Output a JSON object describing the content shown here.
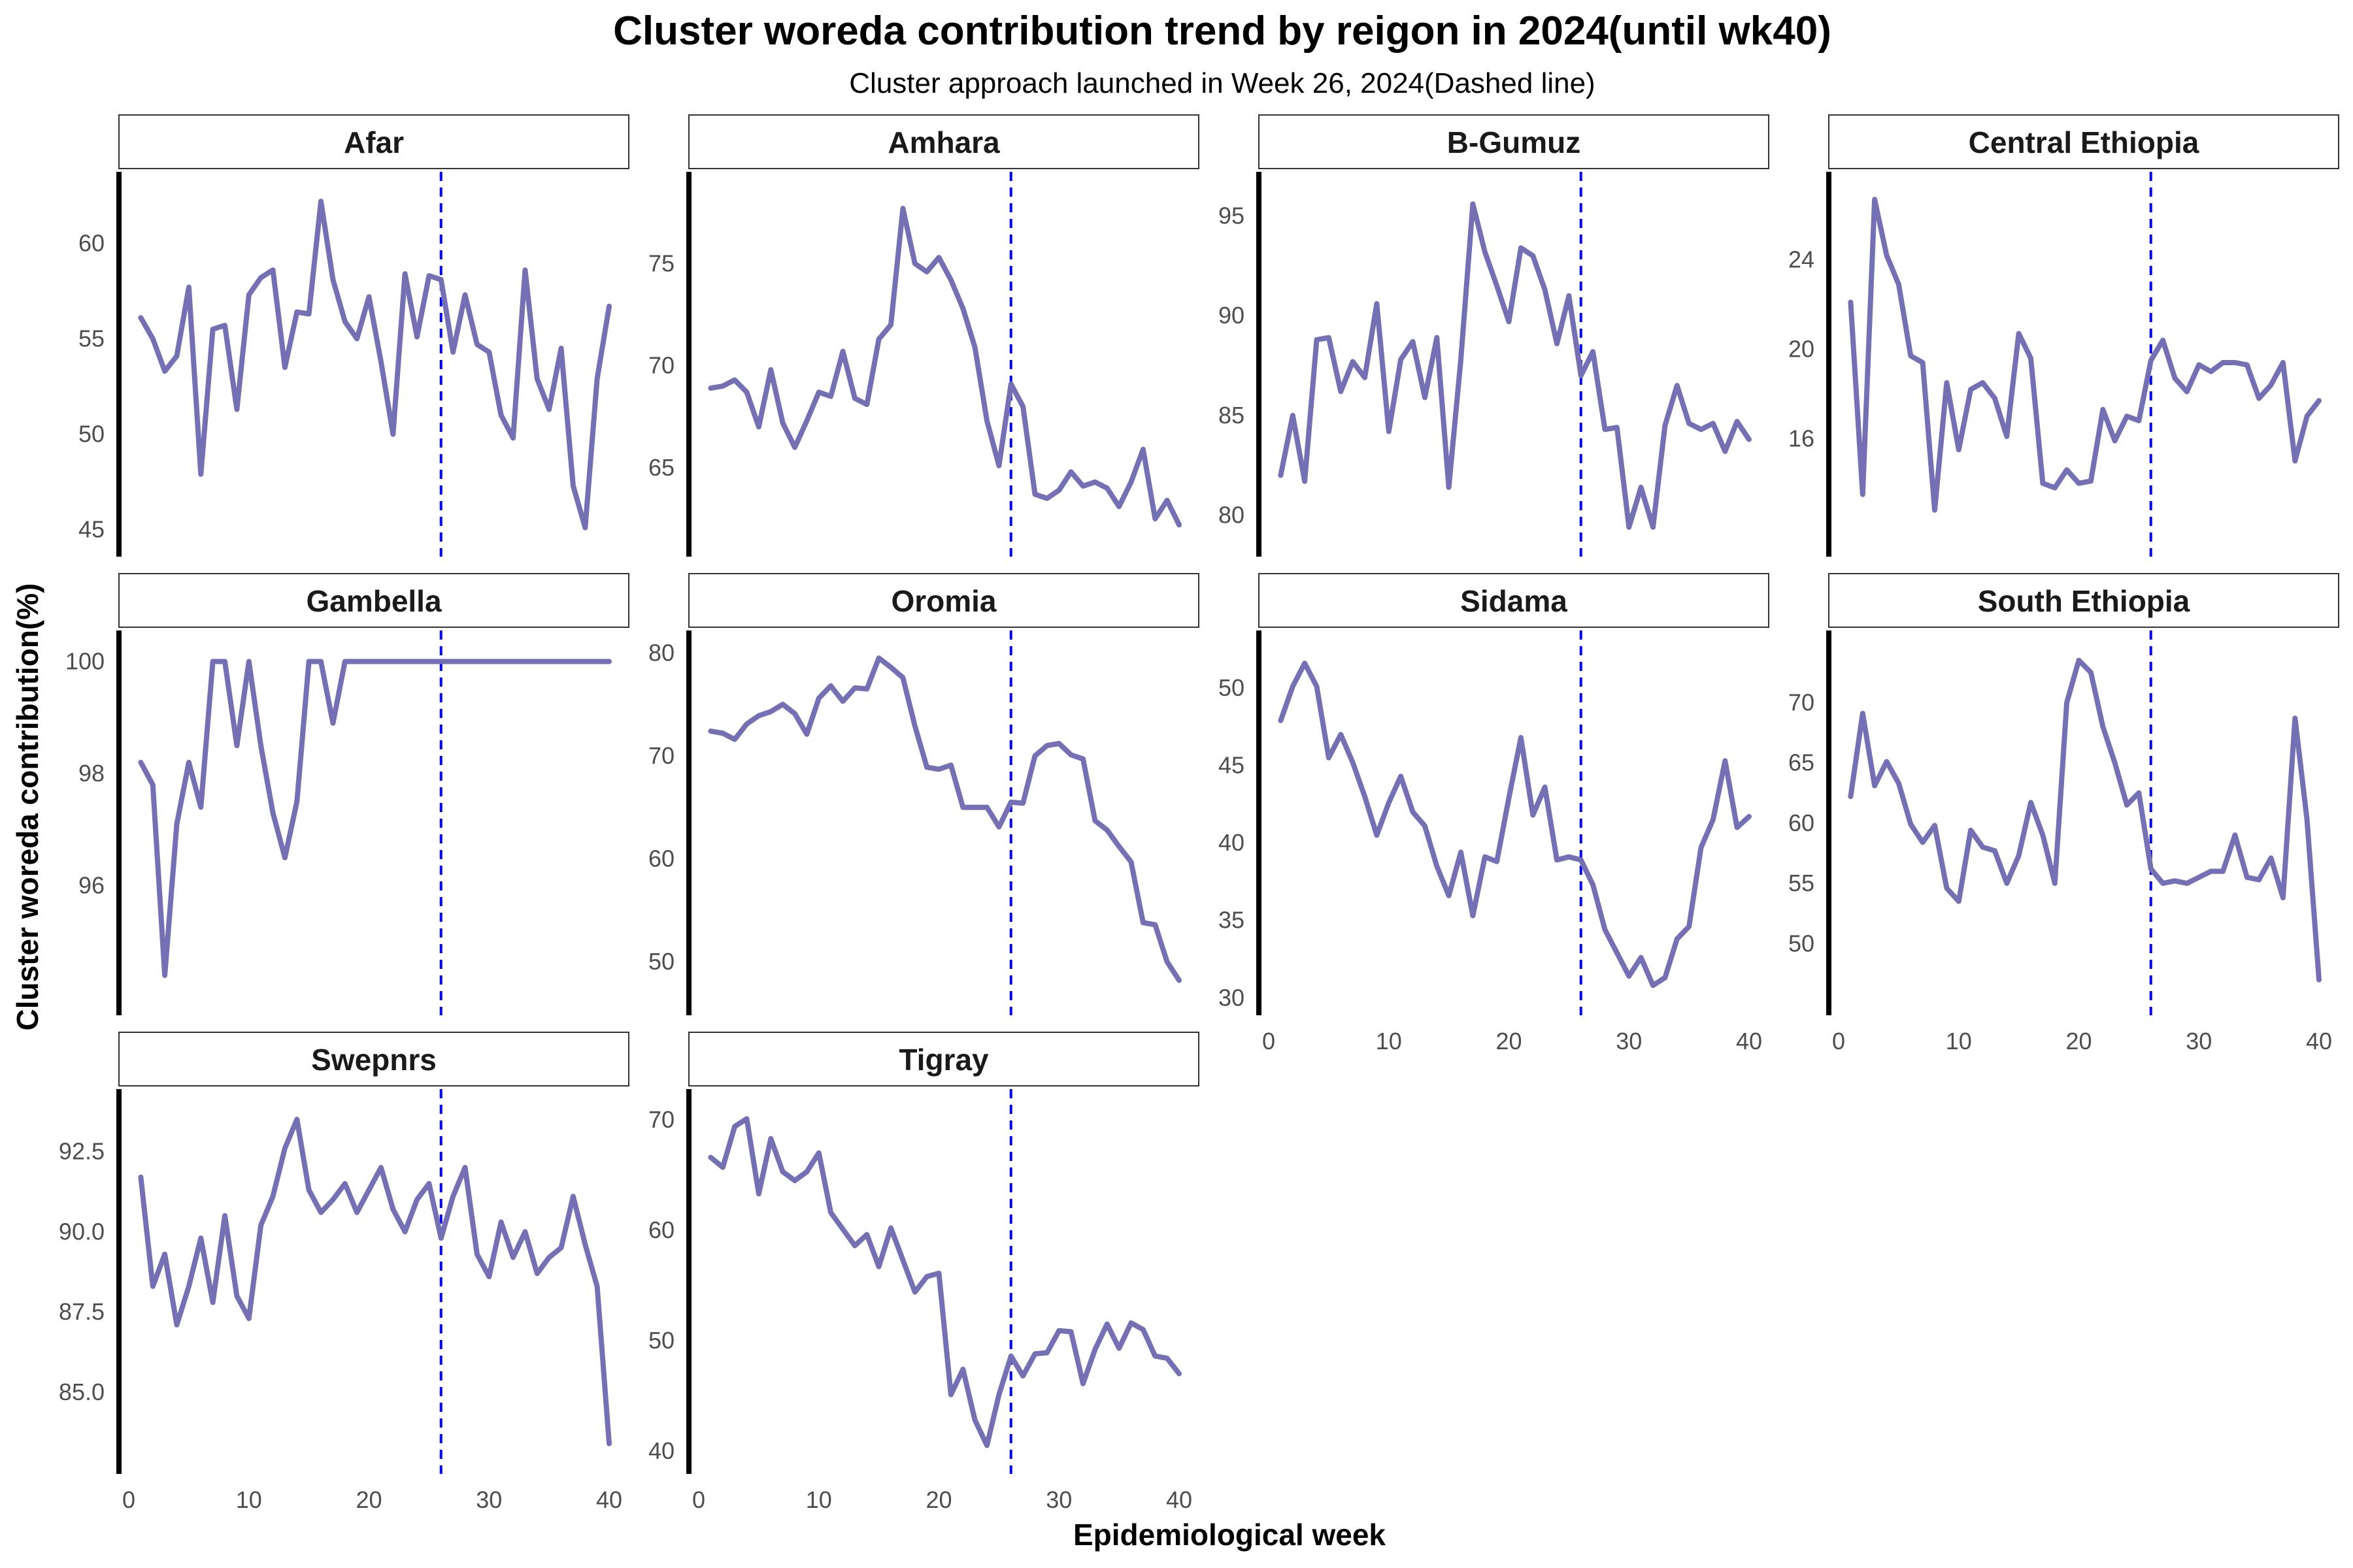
{
  "title": "Cluster woreda contribution trend by reigon in 2024(until wk40)",
  "subtitle": "Cluster approach launched in Week 26, 2024(Dashed line)",
  "chart_data": {
    "type": "line",
    "xlabel": "Epidemiological week",
    "ylabel": "Cluster woreda contribution(%)",
    "xlim": [
      0,
      40
    ],
    "x_ticks": [
      0,
      10,
      20,
      30,
      40
    ],
    "x": [
      1,
      2,
      3,
      4,
      5,
      6,
      7,
      8,
      9,
      10,
      11,
      12,
      13,
      14,
      15,
      16,
      17,
      18,
      19,
      20,
      21,
      22,
      23,
      24,
      25,
      26,
      27,
      28,
      29,
      30,
      31,
      32,
      33,
      34,
      35,
      36,
      37,
      38,
      39,
      40
    ],
    "reference_line": {
      "x": 26,
      "style": "dashed",
      "color": "#0000ff"
    },
    "line_color": "#7570b3",
    "grid": false,
    "facets": [
      {
        "name": "Afar",
        "ylim": [
          44.5,
          63
        ],
        "y_ticks": [
          45,
          50,
          55,
          60
        ],
        "y_tick_labels": [
          "45",
          "50",
          "55",
          "60"
        ],
        "values": [
          56.1,
          55.0,
          53.3,
          54.1,
          57.7,
          47.9,
          55.5,
          55.7,
          51.3,
          57.3,
          58.2,
          58.6,
          53.5,
          56.4,
          56.3,
          62.2,
          58.1,
          55.9,
          55.0,
          57.2,
          53.8,
          50.0,
          58.4,
          55.1,
          58.3,
          58.1,
          54.3,
          57.3,
          54.7,
          54.3,
          51.0,
          49.8,
          58.6,
          52.9,
          51.3,
          54.5,
          47.3,
          45.1,
          52.9,
          56.7
        ]
      },
      {
        "name": "Amhara",
        "ylim": [
          61.5,
          78.8
        ],
        "y_ticks": [
          65,
          70,
          75
        ],
        "y_tick_labels": [
          "65",
          "70",
          "75"
        ],
        "values": [
          68.9,
          69.0,
          69.3,
          68.7,
          67.0,
          69.8,
          67.2,
          66.0,
          67.3,
          68.7,
          68.5,
          70.7,
          68.4,
          68.1,
          71.3,
          72.0,
          77.7,
          75.0,
          74.6,
          75.3,
          74.2,
          72.8,
          70.9,
          67.3,
          65.1,
          69.1,
          68.0,
          63.7,
          63.5,
          63.9,
          64.8,
          64.1,
          64.3,
          64.0,
          63.1,
          64.3,
          65.9,
          62.5,
          63.4,
          62.2
        ]
      },
      {
        "name": "B-Gumuz",
        "ylim": [
          78.8,
          96.5
        ],
        "y_ticks": [
          80,
          85,
          90,
          95
        ],
        "y_tick_labels": [
          "80",
          "85",
          "90",
          "95"
        ],
        "values": [
          82.0,
          85.0,
          81.7,
          88.8,
          88.9,
          86.2,
          87.7,
          86.9,
          90.6,
          84.2,
          87.8,
          88.7,
          85.9,
          88.9,
          81.4,
          87.8,
          95.6,
          93.2,
          91.5,
          89.7,
          93.4,
          93.0,
          91.3,
          88.6,
          91.0,
          87.0,
          88.2,
          84.3,
          84.4,
          79.4,
          81.4,
          79.4,
          84.5,
          86.5,
          84.6,
          84.3,
          84.6,
          83.2,
          84.7,
          83.8
        ]
      },
      {
        "name": "Central Ethiopia",
        "ylim": [
          11.5,
          27.3
        ],
        "y_ticks": [
          16,
          20,
          24
        ],
        "y_tick_labels": [
          "16",
          "20",
          "24"
        ],
        "values": [
          22.1,
          13.5,
          26.7,
          24.2,
          22.9,
          19.7,
          19.4,
          12.8,
          18.5,
          15.5,
          18.2,
          18.5,
          17.8,
          16.1,
          20.7,
          19.6,
          14.0,
          13.8,
          14.6,
          14.0,
          14.1,
          17.3,
          15.9,
          17.0,
          16.8,
          19.5,
          20.4,
          18.7,
          18.1,
          19.3,
          19.0,
          19.4,
          19.4,
          19.3,
          17.8,
          18.4,
          19.4,
          15.0,
          17.0,
          17.7
        ]
      },
      {
        "name": "Gambella",
        "ylim": [
          94.0,
          100.3
        ],
        "y_ticks": [
          96,
          98,
          100
        ],
        "y_tick_labels": [
          "96",
          "98",
          "100"
        ],
        "values": [
          98.2,
          97.8,
          94.4,
          97.1,
          98.2,
          97.4,
          100.0,
          100.0,
          98.5,
          100.0,
          98.5,
          97.3,
          96.5,
          97.5,
          100.0,
          100.0,
          98.9,
          100.0,
          100.0,
          100.0,
          100.0,
          100.0,
          100.0,
          100.0,
          100.0,
          100.0,
          100.0,
          100.0,
          100.0,
          100.0,
          100.0,
          100.0,
          100.0,
          100.0,
          100.0,
          100.0,
          100.0,
          100.0,
          100.0,
          100.0
        ]
      },
      {
        "name": "Oromia",
        "ylim": [
          46.5,
          80.8
        ],
        "y_ticks": [
          50,
          60,
          70,
          80
        ],
        "y_tick_labels": [
          "50",
          "60",
          "70",
          "80"
        ],
        "values": [
          72.4,
          72.2,
          71.6,
          73.1,
          73.9,
          74.3,
          75.0,
          74.1,
          72.1,
          75.6,
          76.8,
          75.3,
          76.6,
          76.5,
          79.5,
          78.6,
          77.6,
          72.9,
          68.9,
          68.7,
          69.1,
          65.0,
          65.0,
          65.0,
          63.1,
          65.5,
          65.4,
          70.0,
          71.0,
          71.2,
          70.1,
          69.7,
          63.7,
          62.8,
          61.2,
          59.7,
          53.8,
          53.6,
          50.0,
          48.2
        ]
      },
      {
        "name": "Sidama",
        "ylim": [
          30.0,
          52.8
        ],
        "y_ticks": [
          30,
          35,
          40,
          45,
          50
        ],
        "y_tick_labels": [
          "30",
          "35",
          "40",
          "45",
          "50"
        ],
        "values": [
          47.9,
          50.1,
          51.6,
          50.1,
          45.5,
          47.0,
          45.2,
          43.0,
          40.5,
          42.6,
          44.3,
          42.0,
          41.1,
          38.5,
          36.6,
          39.4,
          35.3,
          39.1,
          38.8,
          42.9,
          46.8,
          41.8,
          43.6,
          38.9,
          39.1,
          38.9,
          37.3,
          34.4,
          32.9,
          31.4,
          32.6,
          30.8,
          31.3,
          33.8,
          34.6,
          39.7,
          41.5,
          45.3,
          41.0,
          41.7
        ]
      },
      {
        "name": "South Ethiopia",
        "ylim": [
          45.5,
          74.8
        ],
        "y_ticks": [
          50,
          55,
          60,
          65,
          70
        ],
        "y_tick_labels": [
          "50",
          "55",
          "60",
          "65",
          "70"
        ],
        "values": [
          62.2,
          69.1,
          63.1,
          65.1,
          63.3,
          59.9,
          58.4,
          59.8,
          54.6,
          53.5,
          59.4,
          58.0,
          57.7,
          55.0,
          57.3,
          61.7,
          59.0,
          55.0,
          70.0,
          73.5,
          72.5,
          68.0,
          65.0,
          61.5,
          62.5,
          56.2,
          55.0,
          55.2,
          55.0,
          55.5,
          56.0,
          56.0,
          59.0,
          55.5,
          55.3,
          57.1,
          53.8,
          68.7,
          60.3,
          47.0
        ]
      },
      {
        "name": "Swepnrs",
        "ylim": [
          83.0,
          94.0
        ],
        "y_ticks": [
          85.0,
          87.5,
          90.0,
          92.5
        ],
        "y_tick_labels": [
          "85.0",
          "87.5",
          "90.0",
          "92.5"
        ],
        "values": [
          91.7,
          88.3,
          89.3,
          87.1,
          88.3,
          89.8,
          87.8,
          90.5,
          88.0,
          87.3,
          90.2,
          91.1,
          92.6,
          93.5,
          91.3,
          90.6,
          91.0,
          91.5,
          90.6,
          91.3,
          92.0,
          90.7,
          90.0,
          91.0,
          91.5,
          89.8,
          91.1,
          92.0,
          89.3,
          88.6,
          90.3,
          89.2,
          90.0,
          88.7,
          89.2,
          89.5,
          91.1,
          89.6,
          88.3,
          83.4
        ]
      },
      {
        "name": "Tigray",
        "ylim": [
          39.5,
          71.5
        ],
        "y_ticks": [
          40,
          50,
          60,
          70
        ],
        "y_tick_labels": [
          "40",
          "50",
          "60",
          "70"
        ],
        "values": [
          66.6,
          65.7,
          69.4,
          70.1,
          63.3,
          68.3,
          65.3,
          64.5,
          65.3,
          67.0,
          61.6,
          60.1,
          58.6,
          59.6,
          56.7,
          60.2,
          57.3,
          54.4,
          55.8,
          56.1,
          45.1,
          47.4,
          42.8,
          40.5,
          45.1,
          48.6,
          46.8,
          48.8,
          48.9,
          50.9,
          50.8,
          46.1,
          49.2,
          51.5,
          49.3,
          51.6,
          51.0,
          48.6,
          48.4,
          47.0
        ]
      }
    ]
  }
}
